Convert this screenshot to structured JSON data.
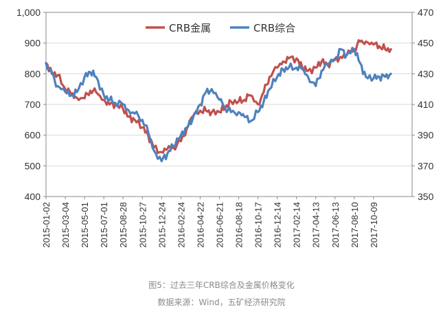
{
  "chart_data": {
    "type": "line",
    "title": "",
    "legend": [
      {
        "name": "CRB金属",
        "color": "#c0504d",
        "axis": "left"
      },
      {
        "name": "CRB综合",
        "color": "#4f81bd",
        "axis": "right"
      }
    ],
    "legend_position": "top-center",
    "left_axis": {
      "ticks": [
        "1,000",
        "900",
        "800",
        "700",
        "600",
        "500",
        "400"
      ],
      "ylim": [
        400,
        1000
      ]
    },
    "right_axis": {
      "ticks": [
        "470",
        "450",
        "430",
        "410",
        "390",
        "370",
        "350"
      ],
      "ylim": [
        350,
        470
      ]
    },
    "x_dates": [
      "2015-01-02",
      "2015-03-04",
      "2015-05-01",
      "2015-07-01",
      "2015-08-28",
      "2015-10-27",
      "2015-12-24",
      "2016-02-24",
      "2016-04-22",
      "2016-06-21",
      "2016-08-18",
      "2016-10-17",
      "2016-12-14",
      "2017-02-14",
      "2017-04-13",
      "2017-06-13",
      "2017-08-10",
      "2017-10-09"
    ],
    "x_end_index": 19,
    "series": [
      {
        "name": "CRB金属",
        "axis": "left",
        "x": [
          0,
          0.3,
          0.6,
          1,
          1.3,
          1.6,
          2,
          2.3,
          2.6,
          3,
          3.3,
          3.6,
          4,
          4.3,
          4.6,
          5,
          5.3,
          5.6,
          6,
          6.3,
          6.6,
          7,
          7.3,
          7.6,
          8,
          8.3,
          8.6,
          9,
          9.3,
          9.6,
          10,
          10.3,
          10.6,
          11,
          11.3,
          11.6,
          12,
          12.3,
          12.6,
          13,
          13.3,
          13.6,
          14,
          14.3,
          14.6,
          15,
          15.3,
          15.6,
          16,
          16.3,
          16.6,
          17,
          17.3,
          17.6,
          17.9
        ],
        "values": [
          835,
          805,
          795,
          750,
          735,
          722,
          720,
          745,
          740,
          715,
          700,
          700,
          685,
          660,
          650,
          625,
          600,
          560,
          545,
          555,
          560,
          580,
          620,
          660,
          680,
          680,
          675,
          675,
          690,
          710,
          710,
          715,
          730,
          700,
          740,
          790,
          820,
          840,
          850,
          850,
          820,
          810,
          820,
          840,
          830,
          845,
          855,
          860,
          880,
          905,
          905,
          895,
          890,
          880,
          880
        ]
      },
      {
        "name": "CRB综合",
        "axis": "right",
        "x": [
          0,
          0.3,
          0.6,
          1,
          1.3,
          1.6,
          2,
          2.3,
          2.6,
          3,
          3.3,
          3.6,
          4,
          4.3,
          4.6,
          5,
          5.3,
          5.6,
          6,
          6.3,
          6.6,
          7,
          7.3,
          7.6,
          8,
          8.3,
          8.6,
          9,
          9.3,
          9.6,
          10,
          10.3,
          10.6,
          11,
          11.3,
          11.6,
          12,
          12.3,
          12.6,
          13,
          13.3,
          13.6,
          14,
          14.3,
          14.6,
          15,
          15.3,
          15.6,
          16,
          16.3,
          16.6,
          17,
          17.3,
          17.6,
          17.9
        ],
        "values": [
          437,
          430,
          422,
          418,
          416,
          418,
          428,
          431,
          428,
          416,
          413,
          411,
          410,
          406,
          404,
          400,
          392,
          380,
          373,
          378,
          383,
          390,
          395,
          400,
          410,
          418,
          420,
          413,
          408,
          405,
          405,
          402,
          399,
          405,
          412,
          420,
          428,
          433,
          434,
          434,
          433,
          428,
          422,
          432,
          436,
          440,
          446,
          442,
          446,
          437,
          428,
          427,
          428,
          428,
          430
        ]
      }
    ]
  },
  "caption_line1": "图5：过去三年CRB综合及金属价格变化",
  "caption_line2": "数据来源：Wind，五矿经济研究院"
}
